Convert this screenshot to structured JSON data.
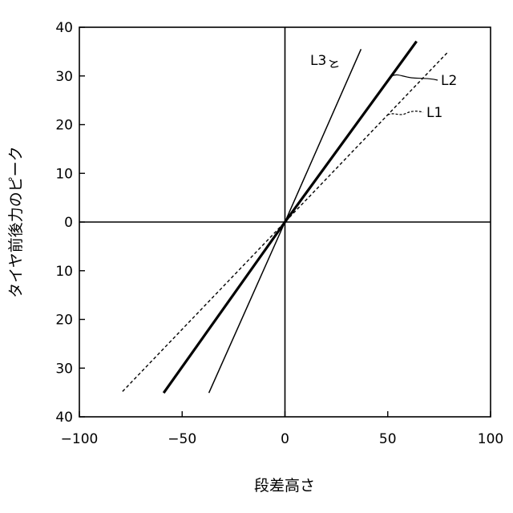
{
  "chart_data": {
    "type": "line",
    "title": "",
    "xlabel": "段差高さ",
    "ylabel": "タイヤ前後力のピーク",
    "xlim": [
      -100,
      100
    ],
    "ylim": [
      -40,
      40
    ],
    "x_ticks": [
      -100,
      -50,
      0,
      50,
      100
    ],
    "x_tick_labels": [
      "−100",
      "−50",
      "0",
      "50",
      "100"
    ],
    "y_ticks": [
      40,
      30,
      20,
      10,
      0,
      -10,
      -20,
      -30,
      -40
    ],
    "y_tick_labels": [
      "40",
      "30",
      "20",
      "10",
      "0",
      "10",
      "20",
      "30",
      "40"
    ],
    "grid": false,
    "series": [
      {
        "name": "L1",
        "style": "dashed",
        "color": "#000000",
        "x": [
          -79,
          0,
          79
        ],
        "y": [
          -34.8,
          0,
          34.8
        ]
      },
      {
        "name": "L2",
        "style": "thick",
        "color": "#000000",
        "x": [
          -59,
          0,
          64
        ],
        "y": [
          -35.1,
          0,
          37.1
        ]
      },
      {
        "name": "L3",
        "style": "thin",
        "color": "#000000",
        "x": [
          -37,
          0,
          37
        ],
        "y": [
          -35.1,
          0,
          35.5
        ]
      }
    ]
  }
}
